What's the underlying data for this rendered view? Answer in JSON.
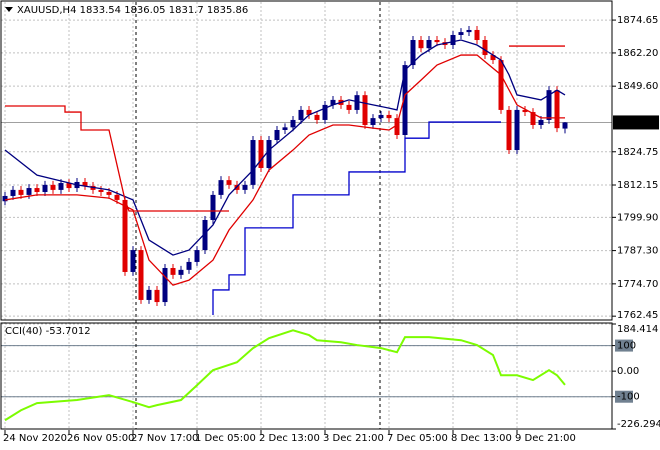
{
  "chart_data": [
    {
      "type": "candlestick",
      "title": "XAUUSD,H4",
      "categories": [
        "24 Nov 2020",
        null,
        null,
        null,
        null,
        null,
        null,
        null,
        "26 Nov 05:00",
        null,
        null,
        null,
        null,
        null,
        null,
        null,
        "27 Nov 17:00",
        null,
        null,
        null,
        null,
        null,
        null,
        null,
        "1 Dec 05:00",
        null,
        null,
        null,
        null,
        null,
        null,
        null,
        "2 Dec 13:00",
        null,
        null,
        null,
        null,
        null,
        null,
        null,
        "3 Dec 21:00",
        null,
        null,
        null,
        null,
        null,
        null,
        null,
        "7 Dec 05:00",
        null,
        null,
        null,
        null,
        null,
        null,
        null,
        "8 Dec 13:00",
        null,
        null,
        null,
        null,
        null,
        null,
        null,
        "9 Dec 21:00",
        null,
        null,
        null,
        null,
        null,
        null
      ],
      "open": [
        1806.0,
        1808.0,
        1810.3,
        1808.4,
        1811.0,
        1809.5,
        1812.2,
        1810.3,
        1812.9,
        1811.0,
        1813.3,
        1811.8,
        1810.3,
        1809.5,
        1808.4,
        1806.5,
        1779.2,
        1787.5,
        1768.6,
        1772.4,
        1767.8,
        1780.7,
        1778.1,
        1780.0,
        1783.0,
        1787.5,
        1798.9,
        1808.4,
        1814.0,
        1812.2,
        1810.3,
        1812.2,
        1829.2,
        1818.6,
        1829.2,
        1833.0,
        1834.0,
        1836.8,
        1840.6,
        1838.7,
        1836.8,
        1842.5,
        1844.4,
        1842.5,
        1840.6,
        1846.2,
        1834.9,
        1837.5,
        1838.7,
        1837.5,
        1831.1,
        1857.6,
        1867.1,
        1864.0,
        1867.1,
        1866.3,
        1865.2,
        1869.0,
        1870.1,
        1870.9,
        1867.1,
        1861.4,
        1859.5,
        1840.6,
        1825.4,
        1840.6,
        1839.8,
        1834.9,
        1836.8,
        1848.1,
        1833.54
      ],
      "high": [
        1809.5,
        1811.8,
        1811.8,
        1812.5,
        1812.5,
        1813.7,
        1813.7,
        1814.4,
        1814.4,
        1814.8,
        1814.8,
        1813.3,
        1811.8,
        1811.0,
        1809.9,
        1808.0,
        1789.0,
        1789.0,
        1773.9,
        1773.9,
        1782.2,
        1782.2,
        1781.5,
        1784.5,
        1789.0,
        1800.4,
        1809.9,
        1815.5,
        1815.5,
        1813.7,
        1813.7,
        1830.7,
        1830.7,
        1830.7,
        1834.5,
        1835.5,
        1838.3,
        1842.1,
        1842.1,
        1840.2,
        1844.0,
        1845.9,
        1845.9,
        1844.0,
        1847.7,
        1847.7,
        1839.0,
        1840.2,
        1840.2,
        1839.0,
        1859.1,
        1868.6,
        1868.6,
        1868.6,
        1868.6,
        1867.8,
        1870.5,
        1871.6,
        1872.4,
        1872.4,
        1868.6,
        1862.9,
        1861.0,
        1842.1,
        1842.1,
        1842.1,
        1841.3,
        1838.3,
        1849.6,
        1849.6,
        1836.05
      ],
      "low": [
        1804.5,
        1806.5,
        1806.9,
        1806.9,
        1808.0,
        1808.0,
        1808.8,
        1808.8,
        1809.5,
        1809.5,
        1810.3,
        1808.8,
        1808.0,
        1806.9,
        1805.0,
        1777.7,
        1777.7,
        1767.1,
        1767.1,
        1766.3,
        1766.3,
        1776.6,
        1776.6,
        1778.5,
        1781.5,
        1786.0,
        1797.4,
        1806.9,
        1810.7,
        1808.8,
        1808.8,
        1810.7,
        1817.1,
        1817.1,
        1827.7,
        1831.5,
        1832.5,
        1835.3,
        1837.2,
        1835.3,
        1835.3,
        1841.0,
        1841.0,
        1839.1,
        1839.1,
        1833.4,
        1833.4,
        1836.0,
        1836.0,
        1829.6,
        1829.6,
        1856.1,
        1862.5,
        1862.5,
        1864.8,
        1863.7,
        1863.7,
        1867.5,
        1868.6,
        1865.6,
        1859.9,
        1858.0,
        1839.1,
        1823.9,
        1823.9,
        1838.3,
        1833.4,
        1833.4,
        1835.3,
        1832.2,
        1831.7
      ],
      "close": [
        1808.0,
        1810.3,
        1808.4,
        1811.0,
        1809.5,
        1812.2,
        1810.3,
        1812.9,
        1811.0,
        1813.3,
        1811.8,
        1810.3,
        1809.5,
        1808.4,
        1806.5,
        1779.2,
        1787.5,
        1768.6,
        1772.4,
        1767.8,
        1780.7,
        1778.1,
        1780.0,
        1783.0,
        1787.5,
        1798.9,
        1808.4,
        1814.0,
        1812.2,
        1810.3,
        1812.2,
        1829.2,
        1818.6,
        1829.2,
        1833.0,
        1834.0,
        1836.8,
        1840.6,
        1838.7,
        1836.8,
        1842.5,
        1844.4,
        1842.5,
        1840.6,
        1846.2,
        1834.9,
        1837.5,
        1838.7,
        1837.5,
        1831.1,
        1857.6,
        1867.1,
        1864.0,
        1867.1,
        1866.3,
        1865.2,
        1869.0,
        1870.1,
        1870.9,
        1867.1,
        1861.4,
        1859.5,
        1840.6,
        1825.4,
        1840.6,
        1839.8,
        1834.9,
        1836.8,
        1848.1,
        1833.7,
        1835.86
      ],
      "up_color": "#000080",
      "down_color": "#e00000",
      "series": [
        {
          "color": "#000080",
          "x": [
            0,
            4,
            9,
            13,
            16,
            18,
            21,
            23,
            26,
            28,
            31,
            33,
            36,
            38,
            41,
            43,
            46,
            48,
            49,
            50,
            52,
            54,
            57,
            59,
            62,
            63,
            64,
            67,
            69,
            70
          ],
          "values": [
            1825.4,
            1815.9,
            1812.2,
            1810.3,
            1806.5,
            1791.3,
            1785.6,
            1787.5,
            1797.0,
            1808.4,
            1817.8,
            1825.4,
            1833.0,
            1838.7,
            1842.5,
            1844.4,
            1842.5,
            1841.3,
            1840.6,
            1855.7,
            1861.4,
            1865.2,
            1867.1,
            1865.2,
            1859.5,
            1853.9,
            1846.3,
            1844.4,
            1848.1,
            1846.3
          ]
        },
        {
          "color": "#e00000",
          "x": [
            0,
            4,
            9,
            13,
            16,
            18,
            21,
            23,
            26,
            28,
            31,
            33,
            36,
            38,
            41,
            43,
            46,
            48,
            49,
            50,
            52,
            54,
            57,
            59,
            62,
            64,
            67,
            69,
            70
          ],
          "values": [
            1806.5,
            1808.4,
            1808.4,
            1807.2,
            1802.7,
            1783.7,
            1774.2,
            1776.1,
            1783.7,
            1795.1,
            1806.5,
            1817.8,
            1825.4,
            1831.1,
            1834.9,
            1834.9,
            1833.7,
            1833.0,
            1834.9,
            1846.3,
            1851.9,
            1857.6,
            1861.4,
            1861.4,
            1853.9,
            1842.5,
            1837.6,
            1837.6,
            1837.6
          ]
        },
        {
          "color": "#e00000",
          "x": [
            0,
            7.5,
            7.5,
            9.5,
            9.5,
            13,
            15,
            15.5,
            28,
            null,
            63,
            70
          ],
          "values": [
            1842.1,
            1842.1,
            1839.8,
            1839.8,
            1833.0,
            1833.0,
            1806.5,
            1802.3,
            1802.3,
            null,
            1864.8,
            1864.8
          ]
        },
        {
          "color": "#0000cc",
          "x": [
            26,
            26,
            28,
            28,
            30,
            30,
            36,
            36,
            43,
            43,
            50,
            50,
            53,
            53,
            62
          ],
          "values": [
            1762.9,
            1772.4,
            1772.4,
            1778.1,
            1778.1,
            1795.9,
            1795.9,
            1808.4,
            1808.4,
            1817.1,
            1817.1,
            1829.9,
            1829.9,
            1836.0,
            1836.0
          ]
        }
      ],
      "ylim": [
        1761.0,
        1881.5
      ],
      "yticks": [
        1874.65,
        {
          "value": 1862.2,
          "label": "1862.20"
        },
        {
          "value": 1849.6,
          "label": "1849.60"
        },
        1824.75,
        1812.15,
        {
          "value": 1799.9,
          "label": "1799.90"
        },
        {
          "value": 1787.3,
          "label": "1787.30"
        },
        {
          "value": 1774.7,
          "label": "1774.70"
        },
        1762.45
      ],
      "grid": true
    },
    {
      "type": "line",
      "title": "CCI(40)",
      "color": "#7cfc00",
      "x": [
        0,
        2,
        4,
        9,
        13,
        16,
        18,
        19,
        22,
        24,
        26,
        29,
        31,
        33,
        36,
        38,
        39,
        42,
        44,
        47,
        49,
        50,
        53,
        57,
        59,
        61,
        62,
        64,
        66,
        68,
        69,
        70
      ],
      "values": [
        -192,
        -153,
        -125,
        -113,
        -94,
        -121,
        -141,
        -133,
        -113,
        -55,
        4,
        35,
        90,
        129,
        160,
        141,
        121,
        113,
        102,
        90,
        74,
        133,
        133,
        121,
        102,
        63,
        -16,
        -16,
        -35,
        4,
        -16,
        -53.7012
      ],
      "ylim": [
        -226.2945,
        184.414
      ],
      "yticks": [
        184.414,
        100,
        {
          "value": 0,
          "label": "0.00"
        },
        -100,
        -226.2945
      ],
      "levels": [
        100,
        -100
      ],
      "grid": true
    }
  ]
}
